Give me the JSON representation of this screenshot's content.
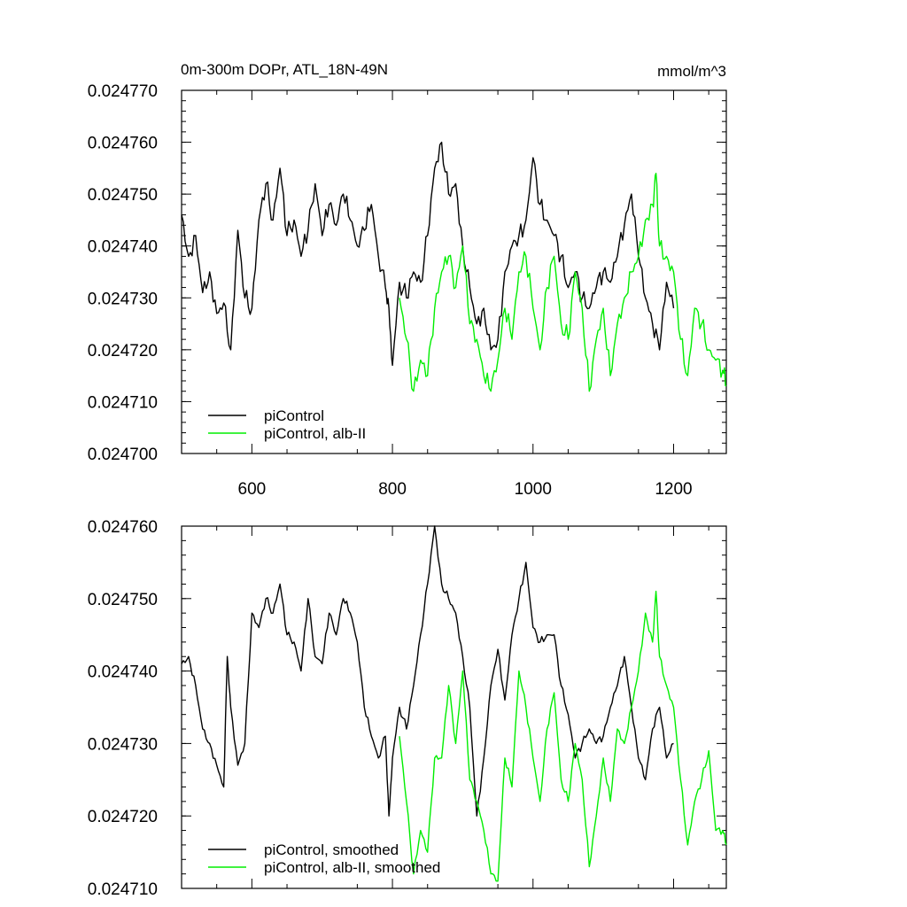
{
  "figure": {
    "title_left": "0m-300m DOPr, ATL_18N-49N",
    "title_right": "mmol/m^3"
  },
  "chart_data": [
    {
      "type": "line",
      "panel": "top",
      "xlim": [
        500,
        1275
      ],
      "ylim": [
        0.0247,
        0.02477
      ],
      "x_ticks": [
        600,
        800,
        1000,
        1200
      ],
      "x_tick_labels": [
        "600",
        "800",
        "1000",
        "1200"
      ],
      "y_ticks": [
        0.0247,
        0.02471,
        0.02472,
        0.02473,
        0.02474,
        0.02475,
        0.02476,
        0.02477
      ],
      "y_tick_labels": [
        "0.024700",
        "0.024710",
        "0.024720",
        "0.024730",
        "0.024740",
        "0.024750",
        "0.024760",
        "0.024770"
      ],
      "legend_position": "bottom-left",
      "series": [
        {
          "name": "piControl",
          "color": "#000000",
          "x": [
            500,
            510,
            520,
            530,
            540,
            550,
            560,
            570,
            580,
            590,
            600,
            610,
            620,
            630,
            640,
            650,
            660,
            670,
            680,
            690,
            700,
            710,
            720,
            730,
            740,
            750,
            760,
            770,
            780,
            790,
            795,
            800,
            810,
            820,
            830,
            840,
            850,
            860,
            870,
            880,
            890,
            900,
            910,
            920,
            930,
            940,
            950,
            960,
            970,
            980,
            990,
            1000,
            1010,
            1020,
            1030,
            1040,
            1050,
            1060,
            1070,
            1080,
            1090,
            1100,
            1110,
            1120,
            1130,
            1140,
            1150,
            1160,
            1170,
            1180,
            1190,
            1200
          ],
          "values": [
            0.024746,
            0.024738,
            0.024742,
            0.024731,
            0.024735,
            0.024727,
            0.024729,
            0.02472,
            0.024743,
            0.02473,
            0.024728,
            0.024745,
            0.024752,
            0.024745,
            0.024755,
            0.024742,
            0.024745,
            0.024738,
            0.024743,
            0.024752,
            0.024742,
            0.024748,
            0.024744,
            0.02475,
            0.024745,
            0.02474,
            0.024743,
            0.024748,
            0.024738,
            0.024732,
            0.024728,
            0.024717,
            0.024733,
            0.02473,
            0.024735,
            0.024733,
            0.024742,
            0.024755,
            0.02476,
            0.02475,
            0.024752,
            0.02474,
            0.024732,
            0.024725,
            0.024728,
            0.02472,
            0.024722,
            0.024735,
            0.02474,
            0.024742,
            0.024745,
            0.024757,
            0.024748,
            0.024745,
            0.024742,
            0.024738,
            0.024732,
            0.024735,
            0.02473,
            0.024728,
            0.024732,
            0.024735,
            0.024733,
            0.024738,
            0.024744,
            0.02475,
            0.024738,
            0.02473,
            0.024725,
            0.02472,
            0.024733,
            0.024728
          ]
        },
        {
          "name": "piControl, alb-II",
          "color": "#00ee00",
          "x": [
            810,
            820,
            830,
            840,
            850,
            860,
            870,
            880,
            890,
            900,
            910,
            920,
            930,
            940,
            950,
            960,
            970,
            980,
            990,
            1000,
            1010,
            1020,
            1030,
            1040,
            1050,
            1060,
            1070,
            1080,
            1090,
            1100,
            1110,
            1120,
            1130,
            1140,
            1150,
            1160,
            1170,
            1175,
            1180,
            1190,
            1200,
            1210,
            1220,
            1230,
            1240,
            1250,
            1260,
            1270,
            1275
          ],
          "values": [
            0.02473,
            0.024722,
            0.024712,
            0.024718,
            0.024715,
            0.024728,
            0.024735,
            0.024738,
            0.024732,
            0.02474,
            0.024725,
            0.024722,
            0.024715,
            0.024712,
            0.024718,
            0.024728,
            0.024722,
            0.024735,
            0.024738,
            0.024728,
            0.02472,
            0.024732,
            0.024738,
            0.024725,
            0.024722,
            0.024735,
            0.024728,
            0.024712,
            0.024722,
            0.024728,
            0.024715,
            0.024725,
            0.02473,
            0.024735,
            0.024738,
            0.024745,
            0.024748,
            0.024754,
            0.02474,
            0.024738,
            0.024735,
            0.024722,
            0.024715,
            0.024728,
            0.024725,
            0.02472,
            0.024718,
            0.024716,
            0.024713
          ]
        }
      ]
    },
    {
      "type": "line",
      "panel": "bottom",
      "xlim": [
        500,
        1275
      ],
      "ylim": [
        0.02471,
        0.02476
      ],
      "x_ticks": [
        600,
        800,
        1000,
        1200
      ],
      "x_tick_labels": [],
      "y_ticks": [
        0.02471,
        0.02472,
        0.02473,
        0.02474,
        0.02475,
        0.02476
      ],
      "y_tick_labels": [
        "0.024710",
        "0.024720",
        "0.024730",
        "0.024740",
        "0.024750",
        "0.024760"
      ],
      "legend_position": "bottom-left",
      "series": [
        {
          "name": "piControl, smoothed",
          "color": "#000000",
          "x": [
            500,
            510,
            520,
            530,
            540,
            550,
            560,
            565,
            570,
            580,
            590,
            600,
            610,
            620,
            630,
            640,
            650,
            660,
            670,
            680,
            690,
            700,
            710,
            720,
            730,
            740,
            750,
            760,
            770,
            780,
            790,
            795,
            800,
            810,
            820,
            830,
            840,
            850,
            860,
            870,
            880,
            890,
            900,
            910,
            920,
            930,
            940,
            950,
            960,
            970,
            980,
            990,
            1000,
            1010,
            1020,
            1030,
            1040,
            1050,
            1060,
            1070,
            1080,
            1090,
            1100,
            1110,
            1120,
            1130,
            1140,
            1150,
            1160,
            1170,
            1180,
            1190,
            1200
          ],
          "values": [
            0.024741,
            0.024742,
            0.024738,
            0.024732,
            0.02473,
            0.024727,
            0.024724,
            0.024742,
            0.024735,
            0.024727,
            0.02473,
            0.024748,
            0.024746,
            0.02475,
            0.024748,
            0.024752,
            0.024745,
            0.024744,
            0.02474,
            0.02475,
            0.024742,
            0.024741,
            0.024748,
            0.024745,
            0.02475,
            0.024748,
            0.024744,
            0.024735,
            0.024731,
            0.024728,
            0.024731,
            0.02472,
            0.024728,
            0.024735,
            0.024732,
            0.024738,
            0.024745,
            0.024752,
            0.02476,
            0.024752,
            0.02475,
            0.024748,
            0.024742,
            0.024735,
            0.02472,
            0.024728,
            0.024738,
            0.024743,
            0.024736,
            0.024745,
            0.02475,
            0.024755,
            0.024746,
            0.024744,
            0.024745,
            0.024745,
            0.024738,
            0.024734,
            0.024728,
            0.02473,
            0.024732,
            0.02473,
            0.024731,
            0.024735,
            0.024738,
            0.024742,
            0.024735,
            0.024728,
            0.024725,
            0.024732,
            0.024735,
            0.024728,
            0.02473
          ]
        },
        {
          "name": "piControl, alb-II, smoothed",
          "color": "#00ee00",
          "x": [
            810,
            820,
            830,
            840,
            850,
            860,
            870,
            880,
            890,
            900,
            910,
            920,
            930,
            940,
            950,
            960,
            970,
            980,
            990,
            1000,
            1010,
            1020,
            1030,
            1040,
            1050,
            1060,
            1070,
            1080,
            1090,
            1100,
            1110,
            1120,
            1130,
            1140,
            1150,
            1160,
            1170,
            1175,
            1180,
            1190,
            1200,
            1210,
            1220,
            1230,
            1240,
            1250,
            1260,
            1270,
            1275
          ],
          "values": [
            0.024731,
            0.024722,
            0.024712,
            0.024718,
            0.024715,
            0.024728,
            0.024728,
            0.024738,
            0.02473,
            0.02474,
            0.024725,
            0.024722,
            0.024718,
            0.024712,
            0.024711,
            0.024728,
            0.024724,
            0.02474,
            0.024735,
            0.024728,
            0.024722,
            0.024732,
            0.024737,
            0.024725,
            0.024722,
            0.02473,
            0.024725,
            0.024713,
            0.02472,
            0.024728,
            0.024722,
            0.024732,
            0.02473,
            0.024735,
            0.02474,
            0.024748,
            0.024744,
            0.024751,
            0.024742,
            0.024738,
            0.024735,
            0.024725,
            0.024716,
            0.024722,
            0.024725,
            0.024729,
            0.024718,
            0.024718,
            0.024716
          ]
        }
      ]
    }
  ]
}
